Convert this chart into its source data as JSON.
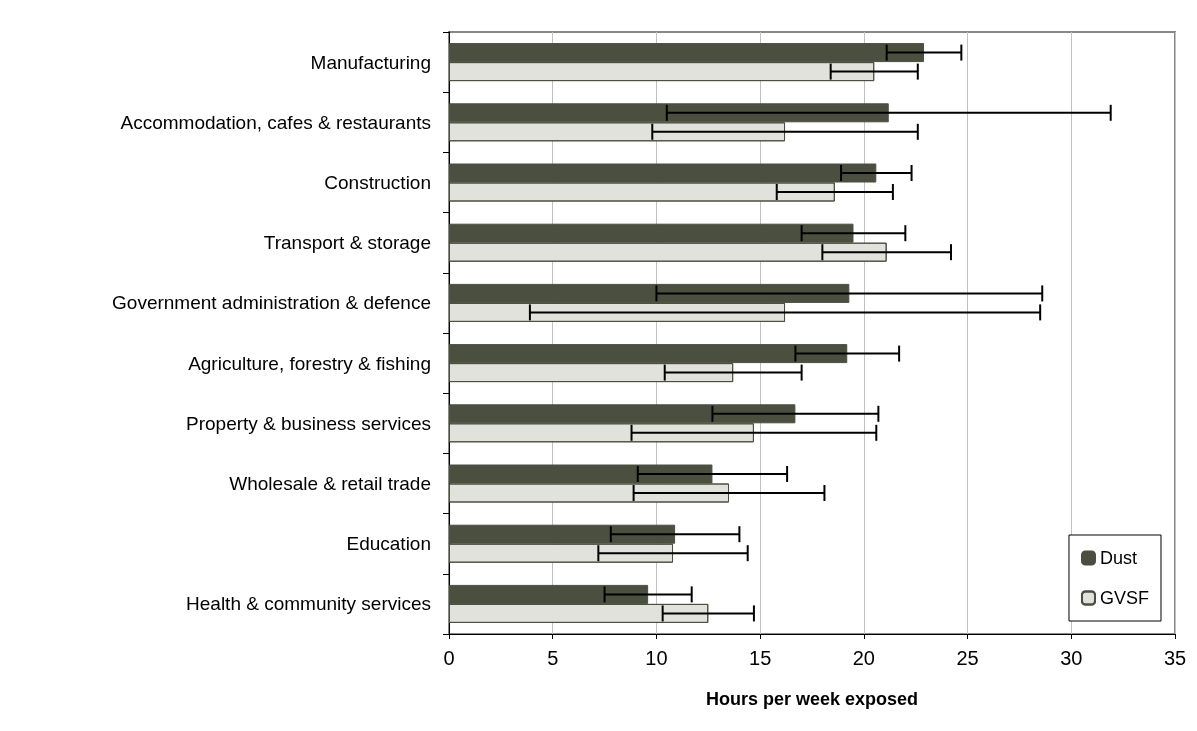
{
  "chart_data": {
    "type": "bar",
    "orientation": "horizontal",
    "xlabel": "Hours per week exposed",
    "categories": [
      "Manufacturing",
      "Accommodation, cafes & restaurants",
      "Construction",
      "Transport & storage",
      "Government administration & defence",
      "Agriculture, forestry & fishing",
      "Property & business services",
      "Wholesale & retail trade",
      "Education",
      "Health & community services"
    ],
    "series": [
      {
        "name": "Dust",
        "color": "#4a4f40",
        "values": [
          22.9,
          21.2,
          20.6,
          19.5,
          19.3,
          19.2,
          16.7,
          12.7,
          10.9,
          9.6
        ],
        "errors": [
          1.8,
          10.7,
          1.7,
          2.5,
          9.3,
          2.5,
          4.0,
          3.6,
          3.1,
          2.1
        ]
      },
      {
        "name": "GVSF",
        "color": "#e2e2dc",
        "values": [
          20.5,
          16.2,
          18.6,
          21.1,
          16.2,
          13.7,
          14.7,
          13.5,
          10.8,
          12.5
        ],
        "errors": [
          2.1,
          6.4,
          2.8,
          3.1,
          12.3,
          3.3,
          5.9,
          4.6,
          3.6,
          2.2
        ]
      }
    ],
    "xlim": [
      0,
      35
    ],
    "xticks": [
      0,
      5,
      10,
      15,
      20,
      25,
      30,
      35
    ],
    "grid": "x",
    "legend": "bottom right"
  }
}
